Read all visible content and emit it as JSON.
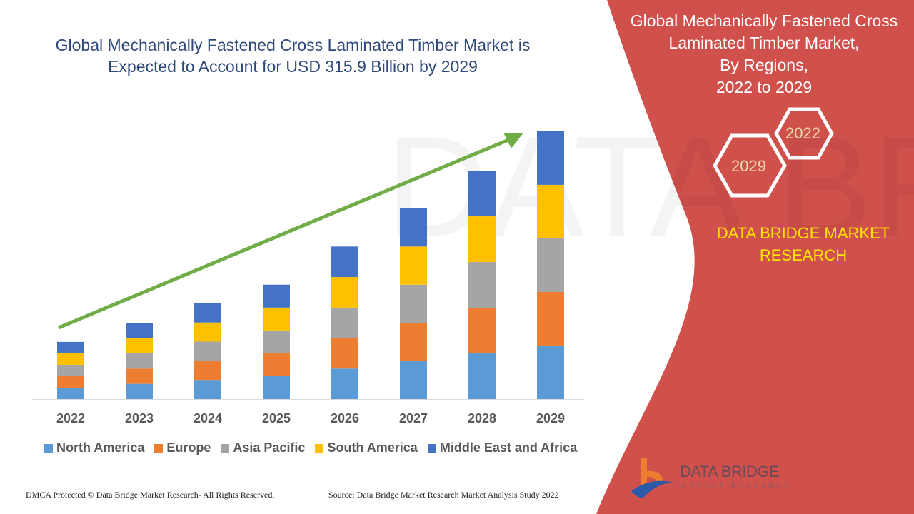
{
  "title": "Global Mechanically Fastened Cross Laminated Timber Market is Expected to Account for USD 315.9 Billion by 2029",
  "side_panel": {
    "title_lines": [
      "Global Mechanically Fastened Cross",
      "Laminated Timber Market,",
      "By Regions,",
      "2022 to 2029"
    ],
    "hex_labels": [
      "2022",
      "2029"
    ],
    "brand_lines": [
      "DATA BRIDGE MARKET",
      "RESEARCH"
    ],
    "logo_text": "DATA BRIDGE",
    "logo_subtext": "MARKET RESEARCH",
    "color": "#d0504b"
  },
  "footer": {
    "left": "DMCA Protected © Data Bridge Market Research- All Rights Reserved.",
    "right": "Source: Data Bridge Market Research Market Analysis Study 2022"
  },
  "watermark": "DATA BRIDGE MARKET RESEARCH",
  "chart_data": {
    "type": "bar",
    "stacked": true,
    "categories": [
      "2022",
      "2023",
      "2024",
      "2025",
      "2026",
      "2027",
      "2028",
      "2029"
    ],
    "series": [
      {
        "name": "North America",
        "color": "#5b9bd5",
        "values": [
          13.5,
          18,
          22.6,
          27,
          36,
          45,
          53.9,
          63.2
        ]
      },
      {
        "name": "Europe",
        "color": "#ed7d31",
        "values": [
          13.5,
          18,
          22.6,
          27,
          36,
          45,
          53.9,
          63.2
        ]
      },
      {
        "name": "Asia Pacific",
        "color": "#a5a5a5",
        "values": [
          13.5,
          18,
          22.6,
          27,
          36,
          45,
          53.9,
          63.2
        ]
      },
      {
        "name": "South America",
        "color": "#ffc000",
        "values": [
          13.5,
          18,
          22.6,
          27,
          36,
          45,
          53.9,
          63.2
        ]
      },
      {
        "name": "Middle East and Africa",
        "color": "#4472c4",
        "values": [
          13.5,
          18,
          22.6,
          27,
          36,
          45,
          53.9,
          63.2
        ]
      }
    ],
    "ylim": [
      0,
      315.9
    ],
    "grid": false,
    "legend": "bottom",
    "trend_arrow_color": "#70ad47"
  }
}
